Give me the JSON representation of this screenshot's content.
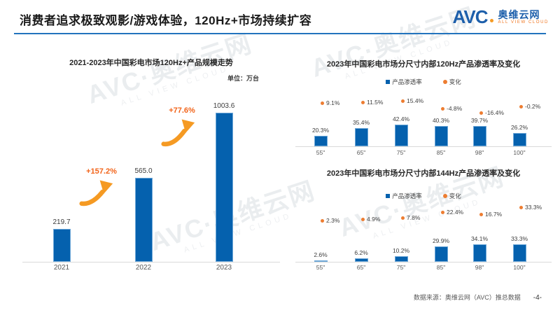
{
  "header": {
    "title": "消费者追求极致观影/游戏体验，120Hz+市场持续扩容"
  },
  "logo": {
    "brand": "AVC",
    "name": "奥维云网",
    "tagline": "ALL VIEW CLOUD"
  },
  "watermark": {
    "main": "AVC·奥维云网",
    "tagline": "ALL VIEW CLOUD"
  },
  "footer": {
    "source": "数据来源：奥维云网（AVC）推总数据",
    "page": "-4-"
  },
  "colors": {
    "bar_fill": "#0561AE",
    "bar_border": "#6FA8D8",
    "change_dot": "#ED7D31",
    "growth_text": "#F2641A",
    "arrow": "#F59A23",
    "header_rule": "#2273BD",
    "logo_blue": "#1D5FAB",
    "logo_orange": "#F59A23"
  },
  "chart_data": [
    {
      "id": "120hz-scale-trend",
      "type": "bar",
      "title": "2021-2023年中国彩电市场120Hz+产品规模走势",
      "unit_label": "单位：万台",
      "categories": [
        "2021",
        "2022",
        "2023"
      ],
      "values": [
        219.7,
        565.0,
        1003.6
      ],
      "value_labels": [
        "219.7",
        "565.0",
        "1003.6"
      ],
      "growth_labels": [
        "+157.2%",
        "+77.6%"
      ],
      "ylabel": "万台",
      "ylim": [
        0,
        1100
      ],
      "grid": false,
      "legend_position": "none"
    },
    {
      "id": "120hz-penetration-by-size-2023",
      "type": "bar",
      "title": "2023年中国彩电市场分尺寸内部120Hz产品渗透率及变化",
      "legend": [
        "产品渗透率",
        "变化"
      ],
      "legend_position": "top",
      "categories": [
        "55\"",
        "65\"",
        "75\"",
        "85\"",
        "98\"",
        "100\""
      ],
      "series": [
        {
          "name": "产品渗透率",
          "type": "bar",
          "values": [
            20.3,
            35.4,
            42.4,
            40.3,
            39.7,
            26.2
          ],
          "labels": [
            "20.3%",
            "35.4%",
            "42.4%",
            "40.3%",
            "39.7%",
            "26.2%"
          ]
        },
        {
          "name": "变化",
          "type": "scatter",
          "values": [
            9.1,
            11.5,
            15.4,
            -4.8,
            -16.4,
            -0.2
          ],
          "labels": [
            "9.1%",
            "11.5%",
            "15.4%",
            "-4.8%",
            "-16.4%",
            "-0.2%"
          ]
        }
      ],
      "grid": false
    },
    {
      "id": "144hz-penetration-by-size-2023",
      "type": "bar",
      "title": "2023年中国彩电市场分尺寸内部144Hz产品渗透率及变化",
      "legend": [
        "产品渗透率",
        "变化"
      ],
      "legend_position": "top",
      "categories": [
        "55\"",
        "65\"",
        "75\"",
        "85\"",
        "98\"",
        "100\""
      ],
      "series": [
        {
          "name": "产品渗透率",
          "type": "bar",
          "values": [
            2.6,
            6.2,
            10.2,
            29.9,
            34.1,
            33.3
          ],
          "labels": [
            "2.6%",
            "6.2%",
            "10.2%",
            "29.9%",
            "34.1%",
            "33.3%"
          ]
        },
        {
          "name": "变化",
          "type": "scatter",
          "values": [
            2.3,
            4.9,
            7.8,
            22.4,
            16.7,
            33.3
          ],
          "labels": [
            "2.3%",
            "4.9%",
            "7.8%",
            "22.4%",
            "16.7%",
            "33.3%"
          ]
        }
      ],
      "grid": false
    }
  ]
}
